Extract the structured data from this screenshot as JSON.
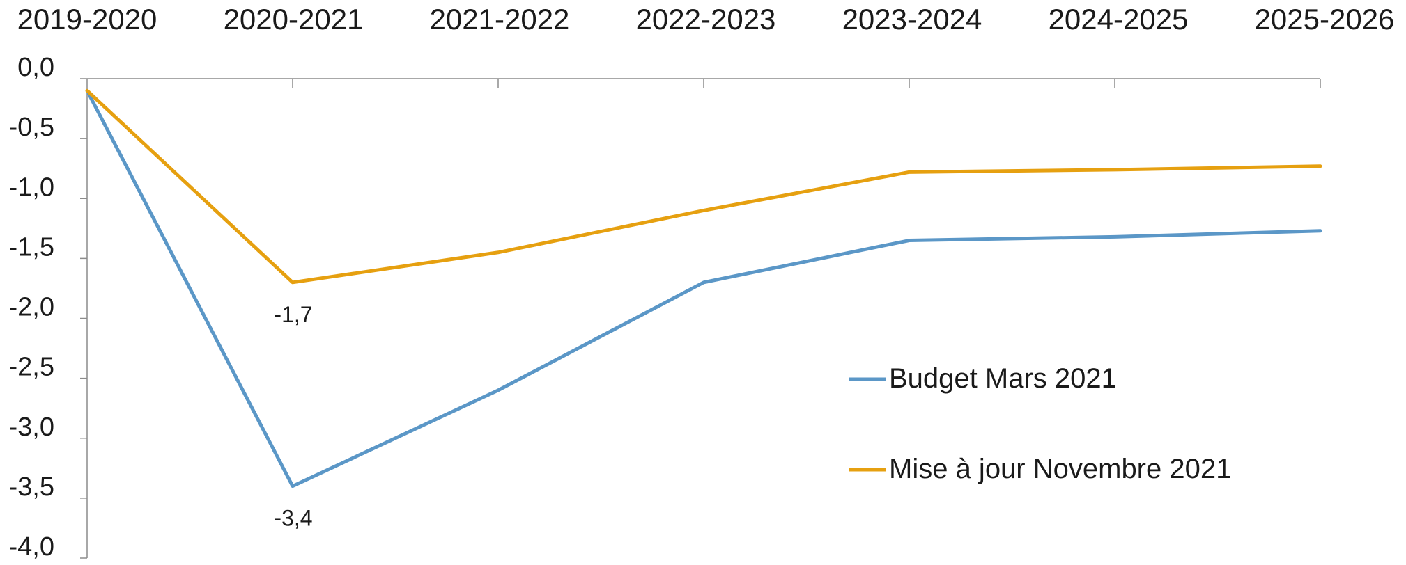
{
  "chart_data": {
    "type": "line",
    "categories": [
      "2019-2020",
      "2020-2021",
      "2021-2022",
      "2022-2023",
      "2023-2024",
      "2024-2025",
      "2025-2026"
    ],
    "series": [
      {
        "name": "Budget Mars 2021",
        "color": "#5b97c7",
        "values": [
          -0.1,
          -3.4,
          -2.6,
          -1.7,
          -1.35,
          -1.32,
          -1.27
        ],
        "labels": [
          null,
          "-3,4",
          null,
          null,
          null,
          null,
          null
        ]
      },
      {
        "name": "Mise à jour Novembre 2021",
        "color": "#e6a010",
        "values": [
          -0.1,
          -1.7,
          -1.45,
          -1.1,
          -0.78,
          -0.76,
          -0.73
        ],
        "labels": [
          null,
          "-1,7",
          null,
          null,
          null,
          null,
          null
        ]
      }
    ],
    "y_ticks": [
      "0,0",
      "-0,5",
      "-1,0",
      "-1,5",
      "-2,0",
      "-2,5",
      "-3,0",
      "-3,5",
      "-4,0"
    ],
    "ylim": [
      -4.0,
      0.0
    ],
    "x_axis_position": "top",
    "legend_position": "center-right",
    "grid": false
  }
}
